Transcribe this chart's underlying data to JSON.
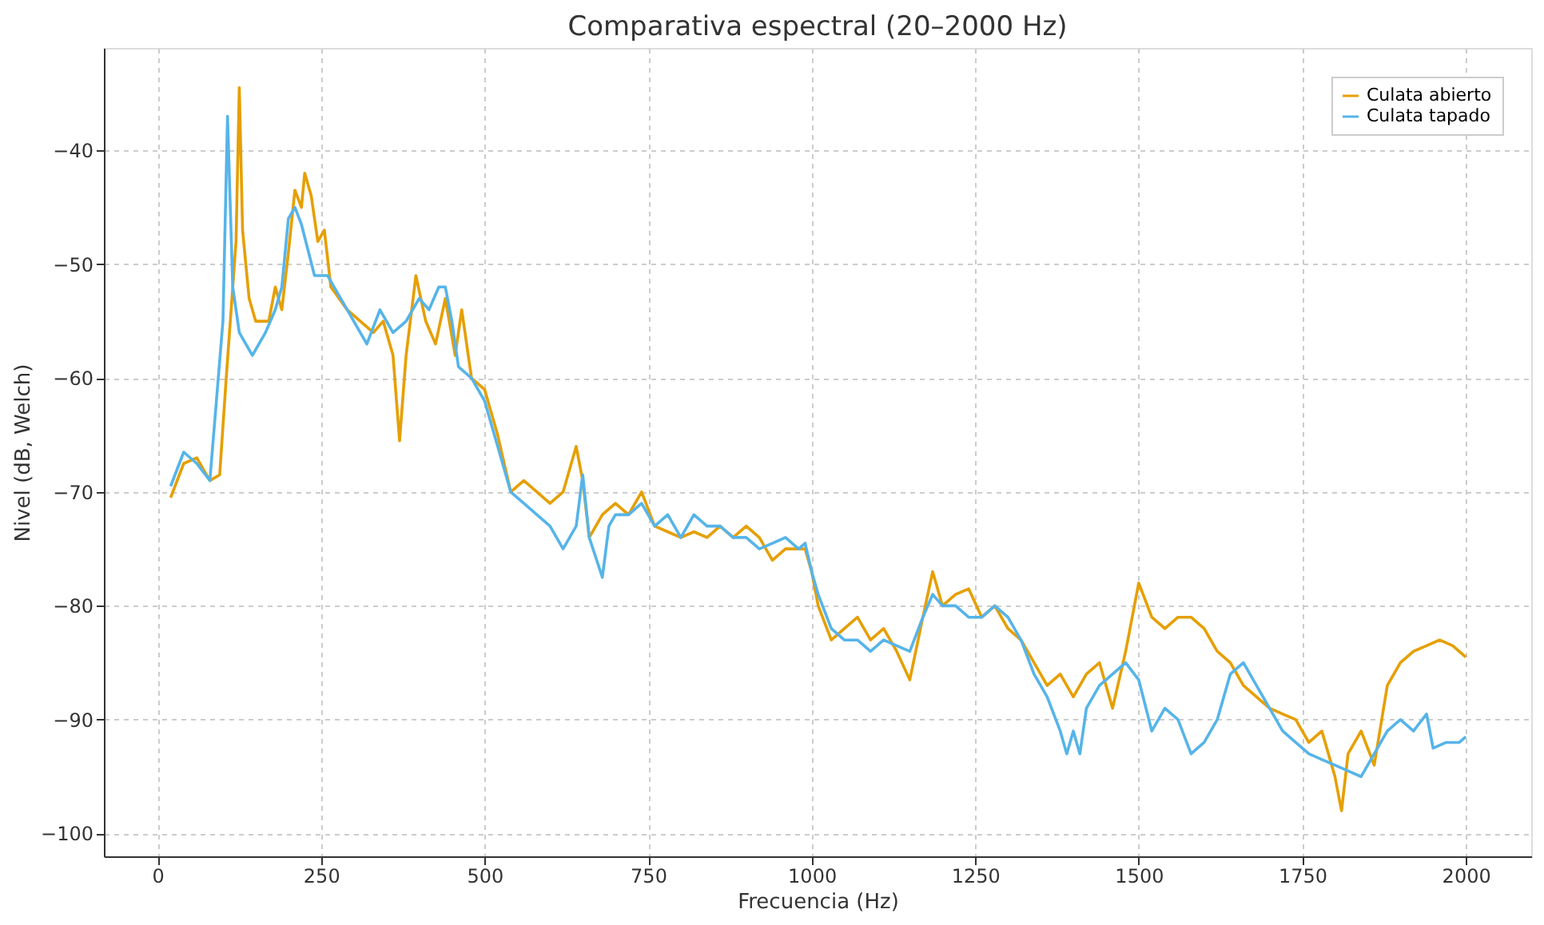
{
  "chart_data": {
    "type": "line",
    "title": "Comparativa espectral (20–2000 Hz)",
    "xlabel": "Frecuencia (Hz)",
    "ylabel": "Nivel (dB, Welch)",
    "xlim": [
      -82,
      2100
    ],
    "xticks": [
      0,
      250,
      500,
      750,
      1000,
      1250,
      1500,
      1750,
      2000
    ],
    "ylim": [
      -102,
      -31
    ],
    "yticks": [
      -100,
      -90,
      -80,
      -70,
      -60,
      -50,
      -40
    ],
    "grid": true,
    "legend": "top right",
    "line_style": "solid",
    "marker": "none",
    "series": [
      {
        "name": "Culata abierto",
        "color": "#e69f00",
        "x": [
          20,
          40,
          60,
          80,
          95,
          105,
          115,
          120,
          125,
          130,
          140,
          150,
          170,
          180,
          190,
          200,
          210,
          220,
          225,
          235,
          245,
          255,
          265,
          290,
          310,
          330,
          345,
          360,
          370,
          380,
          395,
          410,
          425,
          440,
          455,
          465,
          480,
          500,
          520,
          540,
          560,
          580,
          600,
          620,
          640,
          650,
          660,
          680,
          700,
          720,
          740,
          760,
          780,
          800,
          820,
          840,
          860,
          880,
          900,
          920,
          940,
          960,
          990,
          1000,
          1010,
          1030,
          1050,
          1070,
          1090,
          1110,
          1130,
          1150,
          1170,
          1185,
          1200,
          1220,
          1240,
          1260,
          1280,
          1300,
          1320,
          1340,
          1360,
          1380,
          1400,
          1420,
          1440,
          1460,
          1480,
          1500,
          1520,
          1540,
          1560,
          1580,
          1600,
          1620,
          1640,
          1660,
          1680,
          1700,
          1720,
          1740,
          1760,
          1780,
          1800,
          1810,
          1820,
          1840,
          1860,
          1880,
          1900,
          1920,
          1940,
          1960,
          1980,
          2000
        ],
        "values": [
          -70.5,
          -67.5,
          -67,
          -69,
          -68.5,
          -60,
          -52,
          -48,
          -34.5,
          -47,
          -53,
          -55,
          -55,
          -52,
          -54,
          -49,
          -43.5,
          -45,
          -42,
          -44,
          -48,
          -47,
          -52,
          -54,
          -55,
          -56,
          -55,
          -58,
          -65.5,
          -58,
          -51,
          -55,
          -57,
          -53,
          -58,
          -54,
          -60,
          -61,
          -65,
          -70,
          -69,
          -70,
          -71,
          -70,
          -66,
          -69,
          -74,
          -72,
          -71,
          -72,
          -70,
          -73,
          -73.5,
          -74,
          -73.5,
          -74,
          -73,
          -74,
          -73,
          -74,
          -76,
          -75,
          -75,
          -77,
          -80,
          -83,
          -82,
          -81,
          -83,
          -82,
          -84,
          -86.5,
          -81,
          -77,
          -80,
          -79,
          -78.5,
          -81,
          -80,
          -82,
          -83,
          -85,
          -87,
          -86,
          -88,
          -86,
          -85,
          -89,
          -84,
          -78,
          -81,
          -82,
          -81,
          -81,
          -82,
          -84,
          -85,
          -87,
          -88,
          -89,
          -89.5,
          -90,
          -92,
          -91,
          -95,
          -98,
          -93,
          -91,
          -94,
          -87,
          -85,
          -84,
          -83.5,
          -83,
          -83.5,
          -84.5
        ]
      },
      {
        "name": "Culata tapado",
        "color": "#56b4e9",
        "x": [
          20,
          40,
          60,
          80,
          100,
          107,
          115,
          125,
          145,
          165,
          180,
          190,
          200,
          210,
          220,
          240,
          260,
          280,
          300,
          320,
          340,
          360,
          380,
          400,
          415,
          430,
          440,
          450,
          460,
          480,
          500,
          520,
          540,
          560,
          580,
          600,
          620,
          640,
          650,
          660,
          680,
          690,
          700,
          720,
          740,
          760,
          780,
          800,
          820,
          840,
          860,
          880,
          900,
          920,
          940,
          960,
          980,
          990,
          1000,
          1010,
          1030,
          1050,
          1070,
          1090,
          1110,
          1130,
          1150,
          1170,
          1185,
          1200,
          1220,
          1240,
          1260,
          1280,
          1300,
          1320,
          1340,
          1360,
          1380,
          1390,
          1400,
          1410,
          1420,
          1440,
          1460,
          1480,
          1500,
          1520,
          1540,
          1560,
          1580,
          1600,
          1620,
          1640,
          1660,
          1680,
          1700,
          1720,
          1740,
          1760,
          1780,
          1800,
          1820,
          1840,
          1860,
          1880,
          1900,
          1920,
          1940,
          1950,
          1970,
          1990,
          2000
        ],
        "values": [
          -69.5,
          -66.5,
          -67.5,
          -69,
          -55,
          -37,
          -52,
          -56,
          -58,
          -56,
          -54,
          -52,
          -46,
          -45,
          -46.5,
          -51,
          -51,
          -53,
          -55,
          -57,
          -54,
          -56,
          -55,
          -53,
          -54,
          -52,
          -52,
          -55,
          -59,
          -60,
          -62,
          -66,
          -70,
          -71,
          -72,
          -73,
          -75,
          -73,
          -68.5,
          -74,
          -77.5,
          -73,
          -72,
          -72,
          -71,
          -73,
          -72,
          -74,
          -72,
          -73,
          -73,
          -74,
          -74,
          -75,
          -74.5,
          -74,
          -75,
          -74.5,
          -77,
          -79,
          -82,
          -83,
          -83,
          -84,
          -83,
          -83.5,
          -84,
          -81,
          -79,
          -80,
          -80,
          -81,
          -81,
          -80,
          -81,
          -83,
          -86,
          -88,
          -91,
          -93,
          -91,
          -93,
          -89,
          -87,
          -86,
          -85,
          -86.5,
          -91,
          -89,
          -90,
          -93,
          -92,
          -90,
          -86,
          -85,
          -87,
          -89,
          -91,
          -92,
          -93,
          -93.5,
          -94,
          -94.5,
          -95,
          -93,
          -91,
          -90,
          -91,
          -89.5,
          -92.5,
          -92,
          -92,
          -91.5
        ]
      }
    ]
  }
}
